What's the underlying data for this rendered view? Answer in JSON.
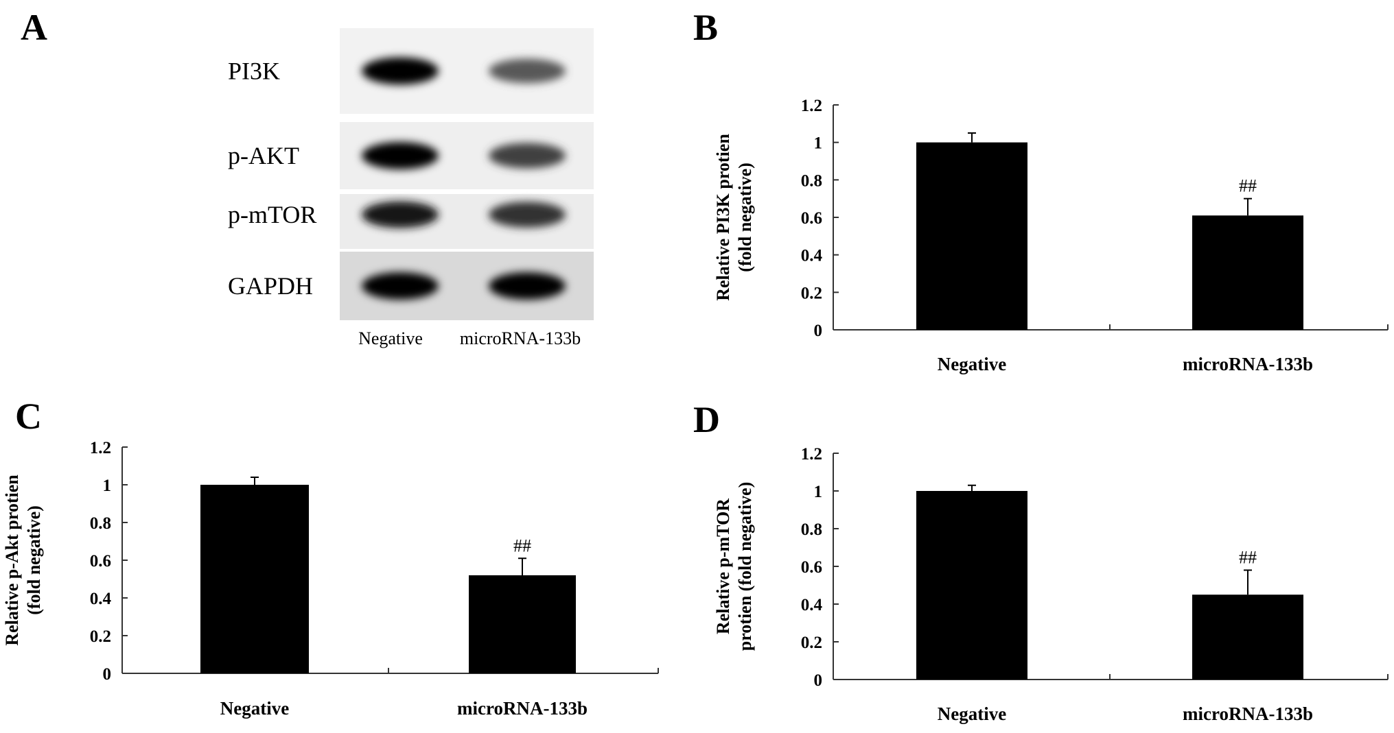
{
  "panel_a": {
    "letter": "A",
    "rows": [
      "PI3K",
      "p-AKT",
      "p-mTOR",
      "GAPDH"
    ],
    "lanes": [
      "Negative",
      "microRNA-133b"
    ],
    "band_intensity": [
      [
        1.0,
        0.65
      ],
      [
        1.0,
        0.75
      ],
      [
        0.9,
        0.8
      ],
      [
        1.0,
        1.0
      ]
    ]
  },
  "chart_data": [
    {
      "panel": "B",
      "type": "bar",
      "categories": [
        "Negative",
        "microRNA-133b"
      ],
      "values": [
        1.0,
        0.61
      ],
      "errors": [
        0.05,
        0.09
      ],
      "annotations": [
        "",
        "##"
      ],
      "ylabel_line1": "Relative PI3K protien",
      "ylabel_line2": "(fold negative)",
      "xlabel": "",
      "ylim": [
        0,
        1.2
      ],
      "yticks": [
        "0",
        "0.2",
        "0.4",
        "0.6",
        "0.8",
        "1",
        "1.2"
      ],
      "bar_color": "#000000"
    },
    {
      "panel": "C",
      "type": "bar",
      "categories": [
        "Negative",
        "microRNA-133b"
      ],
      "values": [
        1.0,
        0.52
      ],
      "errors": [
        0.04,
        0.09
      ],
      "annotations": [
        "",
        "##"
      ],
      "ylabel_line1": "Relative p-Akt protien",
      "ylabel_line2": "(fold negative)",
      "xlabel": "",
      "ylim": [
        0,
        1.2
      ],
      "yticks": [
        "0",
        "0.2",
        "0.4",
        "0.6",
        "0.8",
        "1",
        "1.2"
      ],
      "bar_color": "#000000"
    },
    {
      "panel": "D",
      "type": "bar",
      "categories": [
        "Negative",
        "microRNA-133b"
      ],
      "values": [
        1.0,
        0.45
      ],
      "errors": [
        0.03,
        0.13
      ],
      "annotations": [
        "",
        "##"
      ],
      "ylabel_line1": "Relative p-mTOR",
      "ylabel_line2": "protien (fold negative)",
      "xlabel": "",
      "ylim": [
        0,
        1.2
      ],
      "yticks": [
        "0",
        "0.2",
        "0.4",
        "0.6",
        "0.8",
        "1",
        "1.2"
      ],
      "bar_color": "#000000"
    }
  ]
}
